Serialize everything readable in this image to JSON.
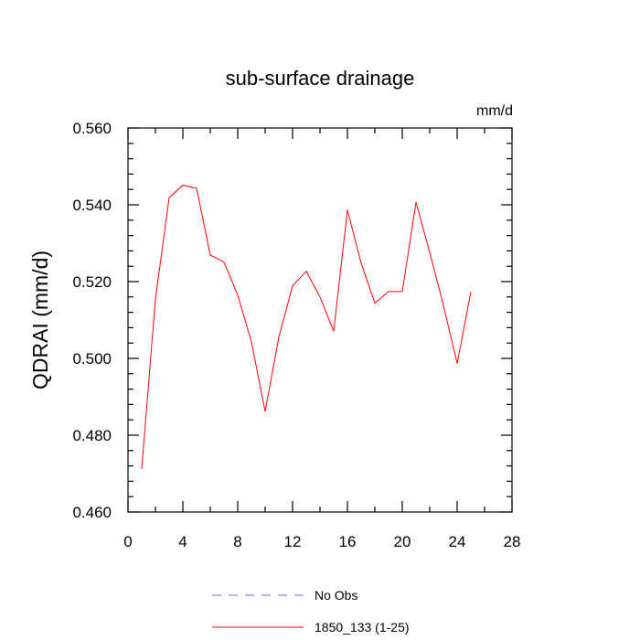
{
  "chart_data": {
    "type": "line",
    "title": "sub-surface drainage",
    "units_label": "mm/d",
    "ylabel": "QDRAI  (mm/d)",
    "xlabel": "",
    "xlim": [
      0,
      28
    ],
    "ylim": [
      0.46,
      0.56
    ],
    "x_ticks": [
      0,
      4,
      8,
      12,
      16,
      20,
      24,
      28
    ],
    "x_tick_labels": [
      "0",
      "4",
      "8",
      "12",
      "16",
      "20",
      "24",
      "28"
    ],
    "y_ticks": [
      0.46,
      0.48,
      0.5,
      0.52,
      0.54,
      0.56
    ],
    "y_tick_labels": [
      "0.460",
      "0.480",
      "0.500",
      "0.520",
      "0.540",
      "0.560"
    ],
    "grid": false,
    "legend_position": "bottom",
    "series": [
      {
        "name": "No Obs",
        "color": "#6b6bff",
        "style": "dashed",
        "x": [],
        "values": []
      },
      {
        "name": "1850_133 (1-25)",
        "color": "#ff0000",
        "style": "solid",
        "x": [
          1,
          2,
          3,
          4,
          5,
          6,
          7,
          8,
          9,
          10,
          11,
          12,
          13,
          14,
          15,
          16,
          17,
          18,
          19,
          20,
          21,
          22,
          23,
          24,
          25
        ],
        "values": [
          0.4712,
          0.5155,
          0.5418,
          0.5451,
          0.5443,
          0.5269,
          0.5251,
          0.5165,
          0.5043,
          0.4862,
          0.5056,
          0.5189,
          0.5227,
          0.516,
          0.5071,
          0.5387,
          0.5248,
          0.5144,
          0.5174,
          0.5174,
          0.5407,
          0.5276,
          0.5138,
          0.4987,
          0.5173
        ]
      }
    ]
  }
}
